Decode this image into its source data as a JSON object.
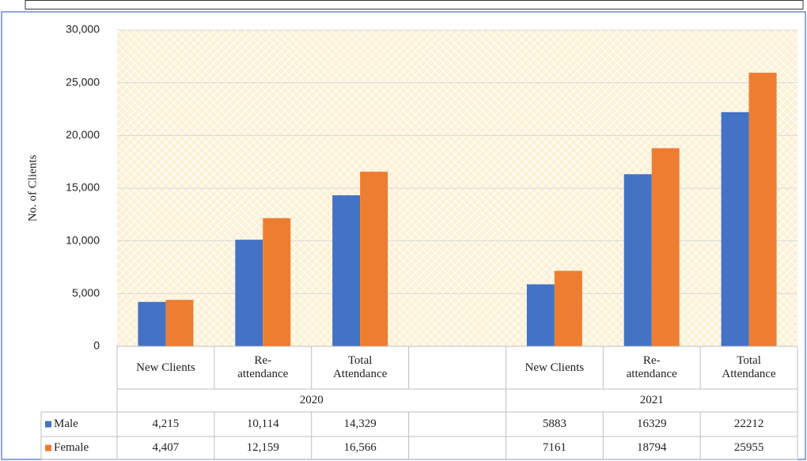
{
  "chart_data": {
    "type": "bar",
    "y_label": "No. of Clients",
    "categories": [
      "New Clients",
      "Re-\nattendance",
      "Total\nAttendance",
      null,
      "New Clients",
      "Re-\nattendance",
      "Total\nAttendance"
    ],
    "groups": [
      {
        "name": "2020",
        "count": 4
      },
      {
        "name": "2021",
        "count": 3
      }
    ],
    "series": [
      {
        "name": "Male",
        "color": "#4472c4",
        "values": [
          4215,
          10114,
          14329,
          null,
          5883,
          16329,
          22212
        ],
        "value_labels": [
          "4,215",
          "10,114",
          "14,329",
          null,
          "5883",
          "16329",
          "22212"
        ]
      },
      {
        "name": "Female",
        "color": "#ed7d31",
        "values": [
          4407,
          12159,
          16566,
          null,
          7161,
          18794,
          25955
        ],
        "value_labels": [
          "4,407",
          "12,159",
          "16,566",
          null,
          "7161",
          "18794",
          "25955"
        ]
      }
    ],
    "ylim": [
      0,
      30000
    ],
    "yticks": [
      0,
      {
        "value": 5000,
        "label": "5,000"
      },
      {
        "value": 10000,
        "label": "10,000"
      },
      {
        "value": 15000,
        "label": "15,000"
      },
      {
        "value": 20000,
        "label": "20,000"
      },
      {
        "value": 25000,
        "label": "25,000"
      },
      {
        "value": 30000,
        "label": "30,000"
      }
    ],
    "grid": true
  }
}
